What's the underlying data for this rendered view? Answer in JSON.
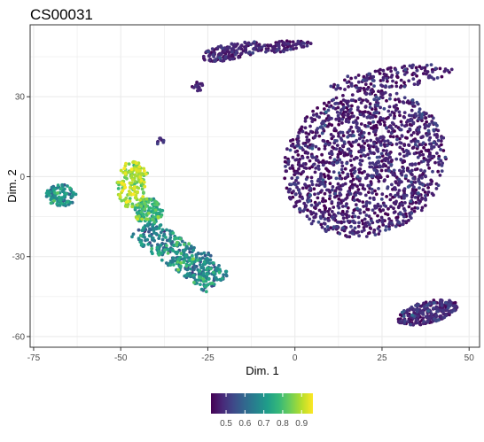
{
  "chart_data": {
    "type": "scatter",
    "title": "CS00031",
    "xlabel": "Dim. 1",
    "ylabel": "Dim. 2",
    "xlim": [
      -76,
      53
    ],
    "ylim": [
      -64,
      57
    ],
    "x_ticks": [
      -75,
      -50,
      -25,
      0,
      25,
      50
    ],
    "x_tick_labels": [
      "-75",
      "-50",
      "-25",
      "0",
      "25",
      "50"
    ],
    "y_ticks": [
      -60,
      -30,
      0,
      30
    ],
    "y_tick_labels": [
      "-60",
      "-30",
      "0",
      "30"
    ],
    "grid": true,
    "legend": {
      "position": "bottom",
      "type": "colorbar",
      "colormap": "viridis",
      "range": [
        0.42,
        0.96
      ],
      "ticks": [
        0.5,
        0.6,
        0.7,
        0.8,
        0.9
      ],
      "tick_labels": [
        "0.5",
        "0.6",
        "0.7",
        "0.8",
        "0.9"
      ]
    },
    "clusters": [
      {
        "shape": "ellipse",
        "center": [
          20,
          5
        ],
        "radius": [
          23,
          28
        ],
        "rotation": -15,
        "count": 1500,
        "value_mean": 0.46,
        "value_sd": 0.04
      },
      {
        "shape": "ellipse",
        "center": [
          28,
          37
        ],
        "radius": [
          18,
          4
        ],
        "rotation": 10,
        "count": 150,
        "value_mean": 0.46,
        "value_sd": 0.04
      },
      {
        "shape": "ellipse",
        "center": [
          -18,
          47
        ],
        "radius": [
          9,
          3
        ],
        "rotation": 15,
        "count": 160,
        "value_mean": 0.46,
        "value_sd": 0.03
      },
      {
        "shape": "ellipse",
        "center": [
          -3,
          49
        ],
        "radius": [
          8,
          2
        ],
        "rotation": 10,
        "count": 80,
        "value_mean": 0.46,
        "value_sd": 0.03
      },
      {
        "shape": "ellipse",
        "center": [
          -28,
          34
        ],
        "radius": [
          1.5,
          2
        ],
        "rotation": 0,
        "count": 15,
        "value_mean": 0.46,
        "value_sd": 0.02
      },
      {
        "shape": "ellipse",
        "center": [
          38,
          -51
        ],
        "radius": [
          9,
          4
        ],
        "rotation": 20,
        "count": 260,
        "value_mean": 0.47,
        "value_sd": 0.04
      },
      {
        "shape": "ellipse",
        "center": [
          -39,
          13
        ],
        "radius": [
          1.5,
          1.5
        ],
        "rotation": 0,
        "count": 8,
        "value_mean": 0.5,
        "value_sd": 0.02
      },
      {
        "shape": "ellipse",
        "center": [
          -67,
          -7
        ],
        "radius": [
          4.5,
          4
        ],
        "rotation": 0,
        "count": 110,
        "value_mean": 0.66,
        "value_sd": 0.06
      },
      {
        "shape": "ellipse",
        "center": [
          -25,
          -30
        ],
        "radius": [
          1.5,
          2
        ],
        "rotation": 0,
        "count": 8,
        "value_mean": 0.62,
        "value_sd": 0.04
      },
      {
        "shape": "ellipse",
        "center": [
          -47,
          -3
        ],
        "radius": [
          4,
          9
        ],
        "rotation": 0,
        "count": 130,
        "value_mean": 0.88,
        "value_sd": 0.05
      },
      {
        "shape": "ellipse",
        "center": [
          -45,
          2
        ],
        "radius": [
          3,
          4
        ],
        "rotation": 0,
        "count": 30,
        "value_mean": 0.9,
        "value_sd": 0.04
      },
      {
        "shape": "ellipse",
        "center": [
          -42,
          -13
        ],
        "radius": [
          4,
          5
        ],
        "rotation": 0,
        "count": 130,
        "value_mean": 0.76,
        "value_sd": 0.06
      },
      {
        "shape": "band",
        "from": [
          -44,
          -19
        ],
        "to": [
          -22,
          -40
        ],
        "half_width": 5,
        "count": 380,
        "value_mean": 0.66,
        "value_sd": 0.07
      }
    ]
  }
}
